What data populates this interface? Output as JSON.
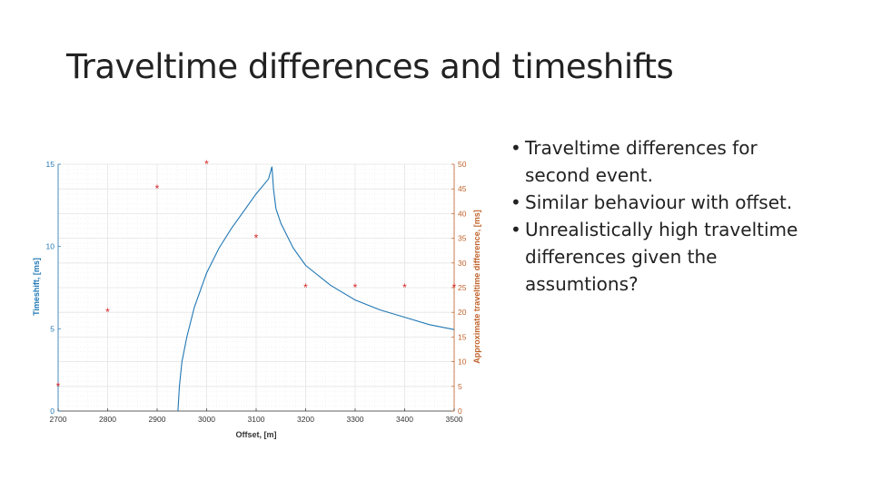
{
  "slide": {
    "title": "Traveltime differences and timeshifts",
    "bullets": [
      "Traveltime differences for second event.",
      "Similar behaviour with offset.",
      "Unrealistically high traveltime differences given the assumtions?"
    ]
  },
  "colors": {
    "left_axis": "#1f77b4",
    "right_axis": "#c0622a",
    "markers": "#d62728",
    "grid": "#e4e4e4",
    "axis_text": "#333333"
  },
  "chart_data": {
    "type": "scatter",
    "xlabel": "Offset, [m]",
    "ylabel": "Timeshift, [ms]",
    "y2label": "Approximate traveltime difference, [ms]",
    "xlim": [
      2700,
      3500
    ],
    "ylim": [
      0,
      15
    ],
    "y2lim": [
      0,
      50
    ],
    "xticks": [
      2700,
      2800,
      2900,
      3000,
      3100,
      3200,
      3300,
      3400,
      3500
    ],
    "yticks": [
      0,
      5,
      10,
      15
    ],
    "y2ticks": [
      0,
      5,
      10,
      15,
      20,
      25,
      30,
      35,
      40,
      45,
      50
    ],
    "grid": true,
    "series": [
      {
        "axis": "left",
        "marker": "*",
        "color": "#d62728",
        "x": [
          2700,
          2800,
          2900,
          3000,
          3100,
          3200,
          3300,
          3400,
          3500
        ],
        "y": [
          1.5,
          6.0,
          13.5,
          15.0,
          10.5,
          7.5,
          7.5,
          7.5,
          7.5
        ]
      },
      {
        "axis": "right",
        "marker": "none",
        "color": "#1f77b4",
        "x": [
          2942,
          2945,
          2950,
          2960,
          2975,
          3000,
          3025,
          3050,
          3075,
          3100,
          3125,
          3132,
          3135,
          3140,
          3150,
          3175,
          3200,
          3250,
          3300,
          3350,
          3400,
          3450,
          3500
        ],
        "y": [
          0,
          5,
          10,
          15,
          21,
          28,
          33,
          37,
          40.5,
          44,
          47,
          49.5,
          45,
          41,
          38,
          33,
          29.5,
          25.5,
          22.5,
          20.5,
          19,
          17.5,
          16.5
        ]
      }
    ]
  }
}
